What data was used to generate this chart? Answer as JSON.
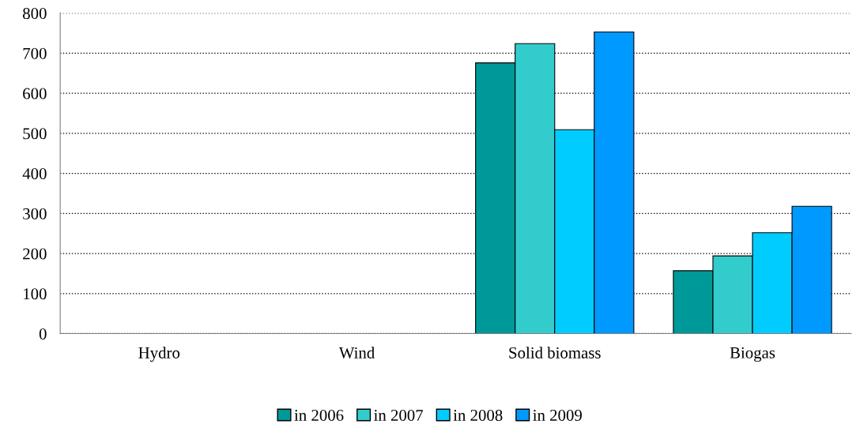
{
  "chart_data": {
    "type": "bar",
    "categories": [
      "Hydro",
      "Wind",
      "Solid biomass",
      "Biogas"
    ],
    "series": [
      {
        "name": "in 2006",
        "color": "#009999",
        "values": [
          0,
          0,
          676,
          157
        ]
      },
      {
        "name": "in 2007",
        "color": "#33cccc",
        "values": [
          0,
          0,
          724,
          194
        ]
      },
      {
        "name": "in 2008",
        "color": "#00ccff",
        "values": [
          0,
          0,
          509,
          252
        ]
      },
      {
        "name": "in 2009",
        "color": "#0099ff",
        "values": [
          0,
          0,
          753,
          318
        ]
      }
    ],
    "ylim": [
      0,
      800
    ],
    "yticks": [
      0,
      100,
      200,
      300,
      400,
      500,
      600,
      700,
      800
    ],
    "grid": "y",
    "legend": "bottom"
  }
}
